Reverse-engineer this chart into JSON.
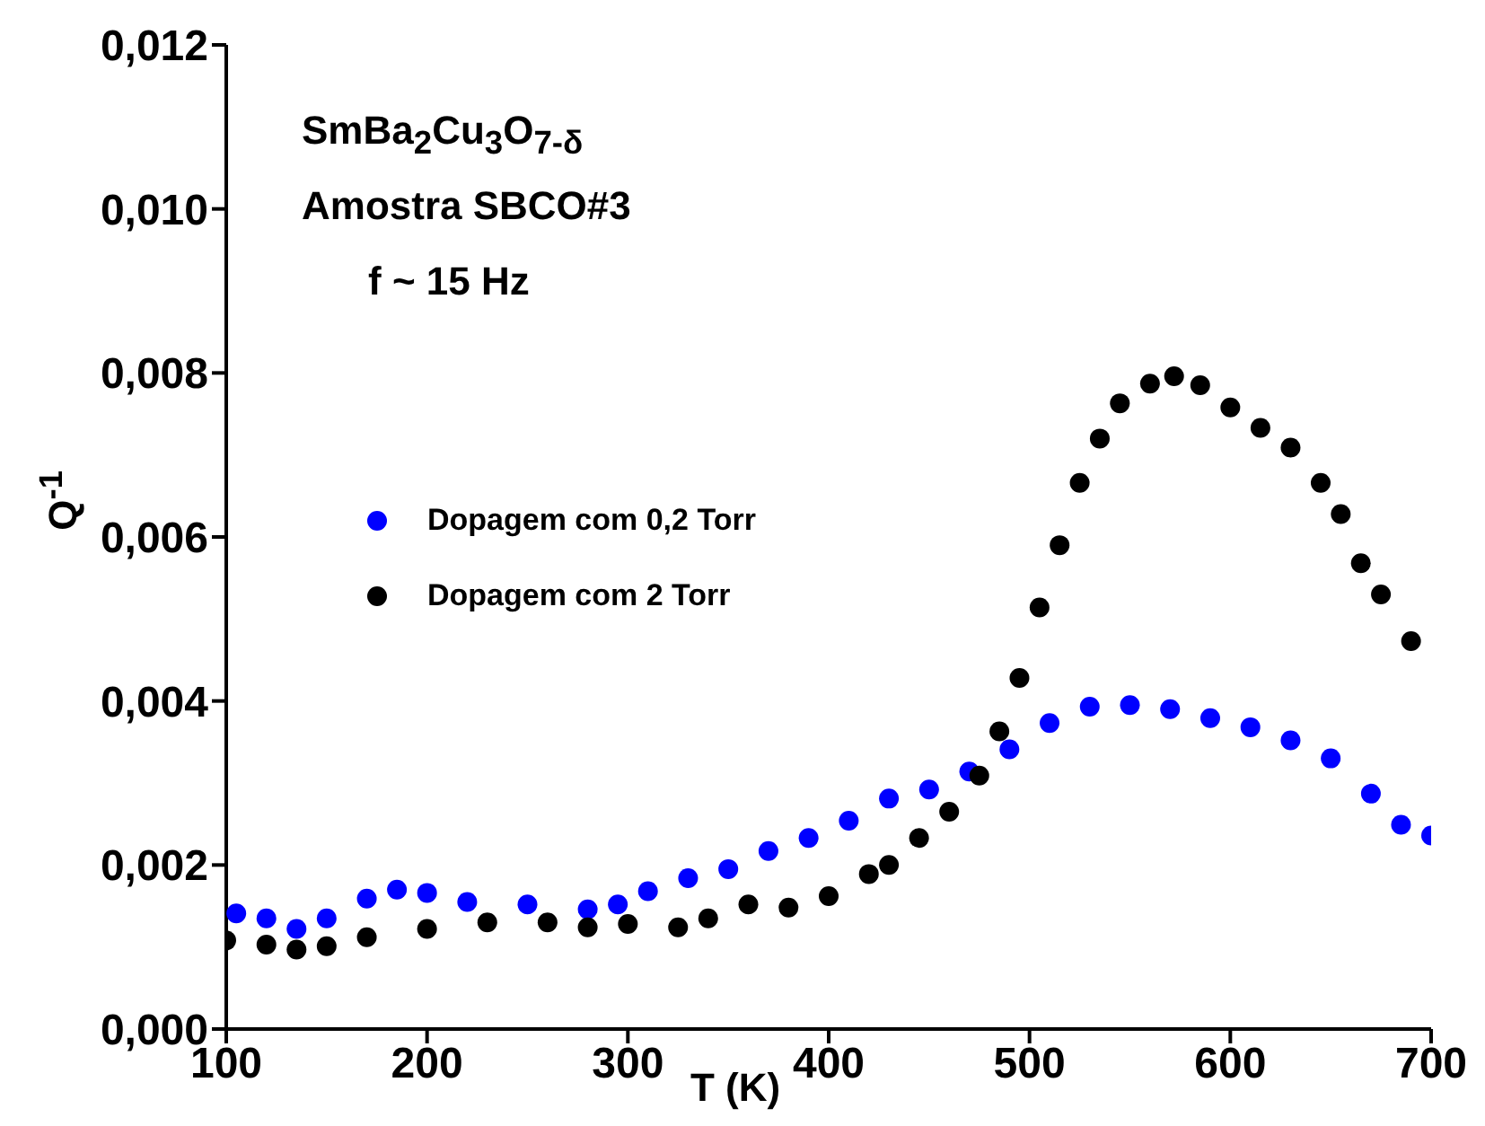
{
  "chart_data": {
    "type": "scatter",
    "xlabel": "T (K)",
    "ylabel": "Q$^{-1}$",
    "annotations": [
      "SmBa$_{2}$Cu$_{3}$O$_{7-δ}$",
      "Amostra SBCO#3",
      "f ~ 15 Hz"
    ],
    "xlim": [
      100,
      700
    ],
    "xticks": [
      100,
      200,
      300,
      400,
      500,
      600,
      700
    ],
    "ylim": [
      0,
      0.012
    ],
    "yticks": [
      {
        "value": 0,
        "label": "0,000"
      },
      {
        "value": 0.002,
        "label": "0,002"
      },
      {
        "value": 0.004,
        "label": "0,004"
      },
      {
        "value": 0.006,
        "label": "0,006"
      },
      {
        "value": 0.008,
        "label": "0,008"
      },
      {
        "value": 0.01,
        "label": "0,010"
      },
      {
        "value": 0.012,
        "label": "0,012"
      }
    ],
    "grid": false,
    "legend": "left",
    "marker": "circle",
    "series": [
      {
        "name": "Dopagem com 0,2 Torr",
        "color": "#0000ff",
        "x": [
          105,
          120,
          135,
          150,
          170,
          185,
          200,
          220,
          250,
          280,
          295,
          310,
          330,
          350,
          370,
          390,
          410,
          430,
          450,
          470,
          490,
          510,
          530,
          550,
          570,
          590,
          610,
          630,
          650,
          670,
          685,
          700
        ],
        "values": [
          0.00141,
          0.00135,
          0.00122,
          0.00135,
          0.00159,
          0.0017,
          0.00166,
          0.00155,
          0.00152,
          0.00146,
          0.00152,
          0.00168,
          0.00184,
          0.00195,
          0.00217,
          0.00233,
          0.00254,
          0.00281,
          0.00292,
          0.00314,
          0.00341,
          0.00373,
          0.00393,
          0.00395,
          0.0039,
          0.00379,
          0.00368,
          0.00352,
          0.0033,
          0.00287,
          0.00249,
          0.00236
        ]
      },
      {
        "name": "Dopagem com 2 Torr",
        "color": "#000000",
        "x": [
          100,
          120,
          135,
          150,
          170,
          200,
          230,
          260,
          280,
          300,
          325,
          340,
          360,
          380,
          400,
          420,
          430,
          445,
          460,
          475,
          485,
          495,
          505,
          515,
          525,
          535,
          545,
          560,
          572,
          585,
          600,
          615,
          630,
          645,
          655,
          665,
          675,
          690
        ],
        "values": [
          0.00108,
          0.00103,
          0.00097,
          0.00101,
          0.00112,
          0.00122,
          0.0013,
          0.0013,
          0.00124,
          0.00128,
          0.00124,
          0.00135,
          0.00152,
          0.00148,
          0.00162,
          0.00189,
          0.002,
          0.00233,
          0.00265,
          0.00309,
          0.00363,
          0.00428,
          0.00514,
          0.0059,
          0.00666,
          0.0072,
          0.00763,
          0.00787,
          0.00796,
          0.00785,
          0.00758,
          0.00733,
          0.00709,
          0.00666,
          0.00628,
          0.00568,
          0.0053,
          0.00473
        ]
      }
    ]
  }
}
